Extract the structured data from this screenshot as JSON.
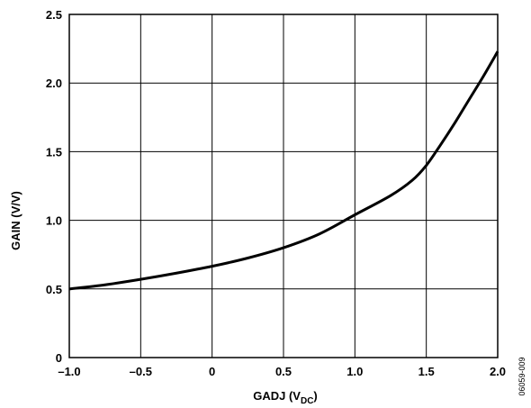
{
  "chart_data": {
    "type": "line",
    "title": "",
    "xlabel": "GADJ (V",
    "xlabel_sub": "DC",
    "xlabel_close": ")",
    "ylabel": "GAIN (V/V)",
    "xlim": [
      -1.0,
      2.0
    ],
    "ylim": [
      0,
      2.5
    ],
    "x_ticks": [
      -1.0,
      -0.5,
      0,
      0.5,
      1.0,
      1.5,
      2.0
    ],
    "x_tick_labels": [
      "–1.0",
      "–0.5",
      "0",
      "0.5",
      "1.0",
      "1.5",
      "2.0"
    ],
    "y_ticks": [
      0,
      0.5,
      1.0,
      1.5,
      2.0,
      2.5
    ],
    "y_tick_labels": [
      "0",
      "0.5",
      "1.0",
      "1.5",
      "2.0",
      "2.5"
    ],
    "grid": true,
    "legend": "none",
    "series": [
      {
        "color": "#000000",
        "x": [
          -1.0,
          -0.75,
          -0.5,
          -0.25,
          0.0,
          0.25,
          0.5,
          0.75,
          1.0,
          1.25,
          1.4,
          1.5,
          1.6,
          1.7,
          1.8,
          1.9,
          2.0
        ],
        "y": [
          0.5,
          0.53,
          0.57,
          0.615,
          0.665,
          0.725,
          0.8,
          0.9,
          1.04,
          1.18,
          1.29,
          1.4,
          1.55,
          1.71,
          1.88,
          2.05,
          2.23
        ]
      }
    ]
  },
  "figure_id": "06059-009"
}
